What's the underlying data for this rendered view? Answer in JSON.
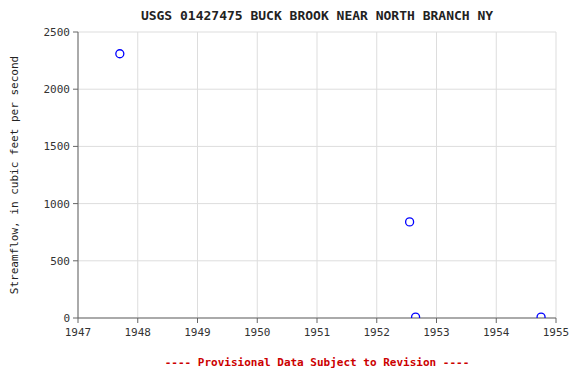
{
  "chart_data": {
    "type": "scatter",
    "title": "USGS 01427475 BUCK BROOK NEAR NORTH BRANCH NY",
    "ylabel": "Streamflow, in cubic feet per second",
    "x": [
      1947.7,
      1952.55,
      1952.65,
      1954.75
    ],
    "values": [
      2310,
      840,
      8,
      8
    ],
    "color": "blue",
    "marker": "circle",
    "xlim": [
      1947,
      1955
    ],
    "ylim": [
      0,
      2500
    ],
    "xticks": [
      1947,
      1948,
      1949,
      1950,
      1951,
      1952,
      1953,
      1954,
      1955
    ],
    "yticks": [
      0,
      500,
      1000,
      1500,
      2000,
      2500
    ],
    "grid": true,
    "annotations": [
      {
        "text": "---- Provisional Data Subject to Revision ----",
        "color": "#cc0000"
      }
    ]
  }
}
